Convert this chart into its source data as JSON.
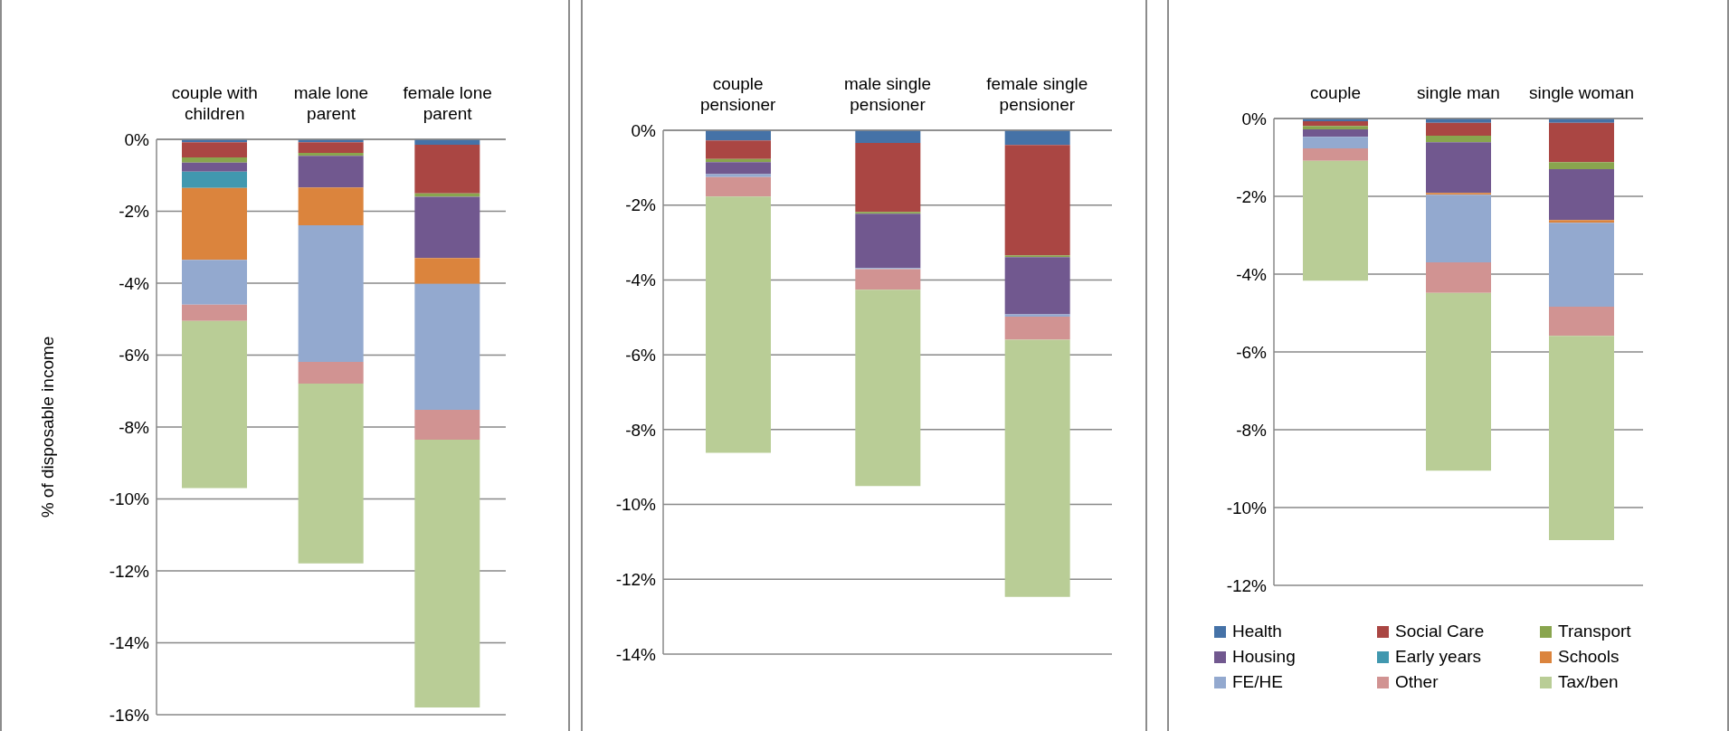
{
  "chart_data": [
    {
      "type": "bar",
      "stacked": true,
      "ylabel": "% of disposable income",
      "categories": [
        "couple with children",
        "male lone parent",
        "female lone parent"
      ],
      "ylim": [
        -16,
        0
      ],
      "yticks": [
        {
          "value": 0,
          "label": "0%"
        },
        {
          "value": -2,
          "label": "-2%"
        },
        {
          "value": -4,
          "label": "-4%"
        },
        {
          "value": -6,
          "label": "-6%"
        },
        {
          "value": -8,
          "label": "-8%"
        },
        {
          "value": -10,
          "label": "-10%"
        },
        {
          "value": -12,
          "label": "-12%"
        },
        {
          "value": -14,
          "label": "-14%"
        },
        {
          "value": -16,
          "label": "-16%"
        }
      ],
      "grid": "y",
      "legend": false,
      "series": [
        {
          "color": "#4572a7",
          "values": [
            -0.08,
            -0.08,
            -0.15
          ]
        },
        {
          "color": "#aa4643",
          "values": [
            -0.42,
            -0.3,
            -1.35
          ]
        },
        {
          "color": "#89a54e",
          "values": [
            -0.15,
            -0.08,
            -0.1
          ]
        },
        {
          "color": "#71588f",
          "values": [
            -0.25,
            -0.88,
            -1.7
          ]
        },
        {
          "color": "#4198af",
          "values": [
            -0.45,
            0,
            0
          ]
        },
        {
          "color": "#db843d",
          "values": [
            -2.0,
            -1.05,
            -0.72
          ]
        },
        {
          "color": "#93a9cf",
          "values": [
            -1.25,
            -3.8,
            -3.5
          ]
        },
        {
          "color": "#d19392",
          "values": [
            -0.45,
            -0.6,
            -0.83
          ]
        },
        {
          "color": "#b9cd96",
          "values": [
            -4.65,
            -5.0,
            -7.45
          ]
        }
      ]
    },
    {
      "type": "bar",
      "stacked": true,
      "categories": [
        "couple pensioner",
        "male single pensioner",
        "female single pensioner"
      ],
      "ylim": [
        -14,
        0
      ],
      "yticks": [
        {
          "value": 0,
          "label": "0%"
        },
        {
          "value": -2,
          "label": "-2%"
        },
        {
          "value": -4,
          "label": "-4%"
        },
        {
          "value": -6,
          "label": "-6%"
        },
        {
          "value": -8,
          "label": "-8%"
        },
        {
          "value": -10,
          "label": "-10%"
        },
        {
          "value": -12,
          "label": "-12%"
        },
        {
          "value": -14,
          "label": "-14%"
        }
      ],
      "grid": "y",
      "legend": false,
      "series": [
        {
          "color": "#4572a7",
          "values": [
            -0.27,
            -0.34,
            -0.39
          ]
        },
        {
          "color": "#aa4643",
          "values": [
            -0.5,
            -1.84,
            -2.95
          ]
        },
        {
          "color": "#89a54e",
          "values": [
            -0.08,
            -0.05,
            -0.05
          ]
        },
        {
          "color": "#71588f",
          "values": [
            -0.32,
            -1.45,
            -1.53
          ]
        },
        {
          "color": "#4198af",
          "values": [
            0,
            0,
            0
          ]
        },
        {
          "color": "#db843d",
          "values": [
            0,
            0,
            0
          ]
        },
        {
          "color": "#93a9cf",
          "values": [
            -0.08,
            -0.03,
            -0.06
          ]
        },
        {
          "color": "#d19392",
          "values": [
            -0.52,
            -0.55,
            -0.62
          ]
        },
        {
          "color": "#b9cd96",
          "values": [
            -6.85,
            -5.25,
            -6.87
          ]
        }
      ]
    },
    {
      "type": "bar",
      "stacked": true,
      "categories": [
        "couple",
        "single man",
        "single woman"
      ],
      "ylim": [
        -12,
        0
      ],
      "yticks": [
        {
          "value": 0,
          "label": "0%"
        },
        {
          "value": -2,
          "label": "-2%"
        },
        {
          "value": -4,
          "label": "-4%"
        },
        {
          "value": -6,
          "label": "-6%"
        },
        {
          "value": -8,
          "label": "-8%"
        },
        {
          "value": -10,
          "label": "-10%"
        },
        {
          "value": -12,
          "label": "-12%"
        }
      ],
      "grid": "y",
      "legend": "bottom",
      "series": [
        {
          "name": "Health",
          "color": "#4572a7",
          "values": [
            -0.07,
            -0.11,
            -0.11
          ]
        },
        {
          "name": "Social Care",
          "color": "#aa4643",
          "values": [
            -0.12,
            -0.33,
            -1.01
          ]
        },
        {
          "name": "Transport",
          "color": "#89a54e",
          "values": [
            -0.09,
            -0.17,
            -0.18
          ]
        },
        {
          "name": "Housing",
          "color": "#71588f",
          "values": [
            -0.19,
            -1.3,
            -1.31
          ]
        },
        {
          "name": "Early years",
          "color": "#4198af",
          "values": [
            0,
            0,
            0
          ]
        },
        {
          "name": "Schools",
          "color": "#db843d",
          "values": [
            0,
            -0.05,
            -0.07
          ]
        },
        {
          "name": "FE/HE",
          "color": "#93a9cf",
          "values": [
            -0.3,
            -1.74,
            -2.16
          ]
        },
        {
          "name": "Other",
          "color": "#d19392",
          "values": [
            -0.32,
            -0.78,
            -0.75
          ]
        },
        {
          "name": "Tax/ben",
          "color": "#b9cd96",
          "values": [
            -3.08,
            -4.57,
            -5.25
          ]
        }
      ]
    }
  ]
}
